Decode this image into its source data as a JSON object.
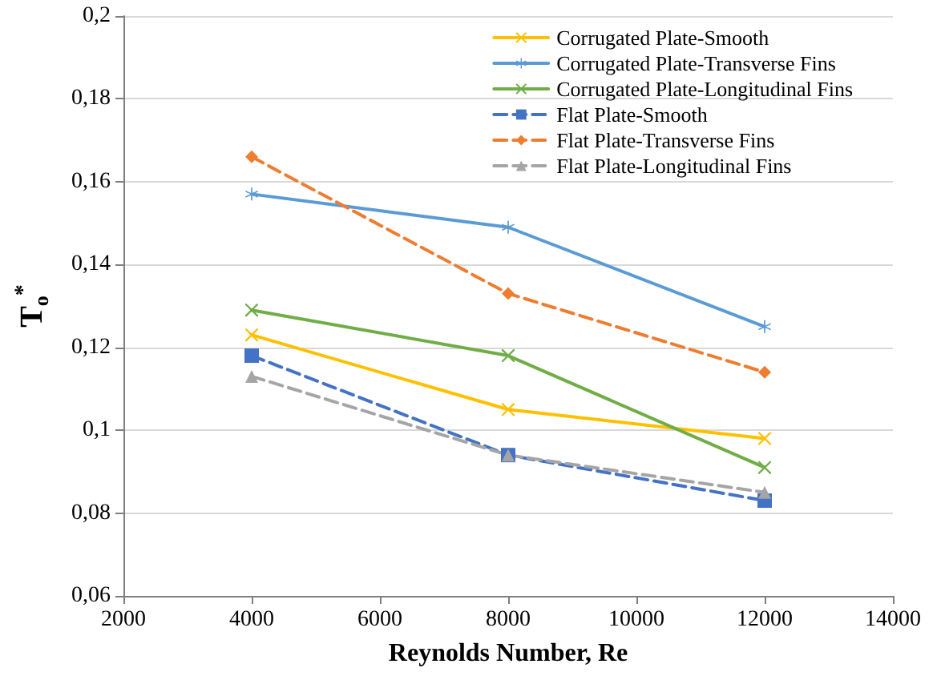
{
  "chart_data": {
    "type": "line",
    "xlabel": "Reynolds Number, Re",
    "ylabel": "T$_{o}$$^{*}$",
    "x": [
      4000,
      8000,
      12000
    ],
    "series": [
      {
        "name": "Corrugated Plate-Smooth",
        "color": "#ffc000",
        "marker": "cross",
        "line_style": "solid",
        "values": [
          0.123,
          0.105,
          0.098
        ]
      },
      {
        "name": "Corrugated Plate-Transverse Fins",
        "color": "#5b9bd5",
        "marker": "star",
        "line_style": "solid",
        "values": [
          0.157,
          0.149,
          0.125
        ]
      },
      {
        "name": "Corrugated Plate-Longitudinal Fins",
        "color": "#70ad47",
        "marker": "cross",
        "line_style": "solid",
        "values": [
          0.129,
          0.118,
          0.091
        ]
      },
      {
        "name": "Flat Plate-Smooth",
        "color": "#4472c4",
        "marker": "square",
        "line_style": "dashed",
        "values": [
          0.118,
          0.094,
          0.083
        ]
      },
      {
        "name": "Flat Plate-Transverse Fins",
        "color": "#ed7d31",
        "marker": "diamond",
        "line_style": "dashed",
        "values": [
          0.166,
          0.133,
          0.114
        ]
      },
      {
        "name": "Flat Plate-Longitudinal Fins",
        "color": "#a5a5a5",
        "marker": "triangle",
        "line_style": "dashed",
        "values": [
          0.113,
          0.094,
          0.085
        ]
      }
    ],
    "xlim": [
      2000,
      14000
    ],
    "xticks": [
      2000,
      4000,
      6000,
      8000,
      10000,
      12000,
      14000
    ],
    "ylim": [
      0.06,
      0.2
    ],
    "yticks": [
      {
        "value": 0.06,
        "label": "0,06"
      },
      {
        "value": 0.08,
        "label": "0,08"
      },
      {
        "value": 0.1,
        "label": "0,1"
      },
      {
        "value": 0.12,
        "label": "0,12"
      },
      {
        "value": 0.14,
        "label": "0,14"
      },
      {
        "value": 0.16,
        "label": "0,16"
      },
      {
        "value": 0.18,
        "label": "0,18"
      },
      {
        "value": 0.2,
        "label": "0,2"
      }
    ],
    "grid": "y",
    "legend": "top right"
  }
}
